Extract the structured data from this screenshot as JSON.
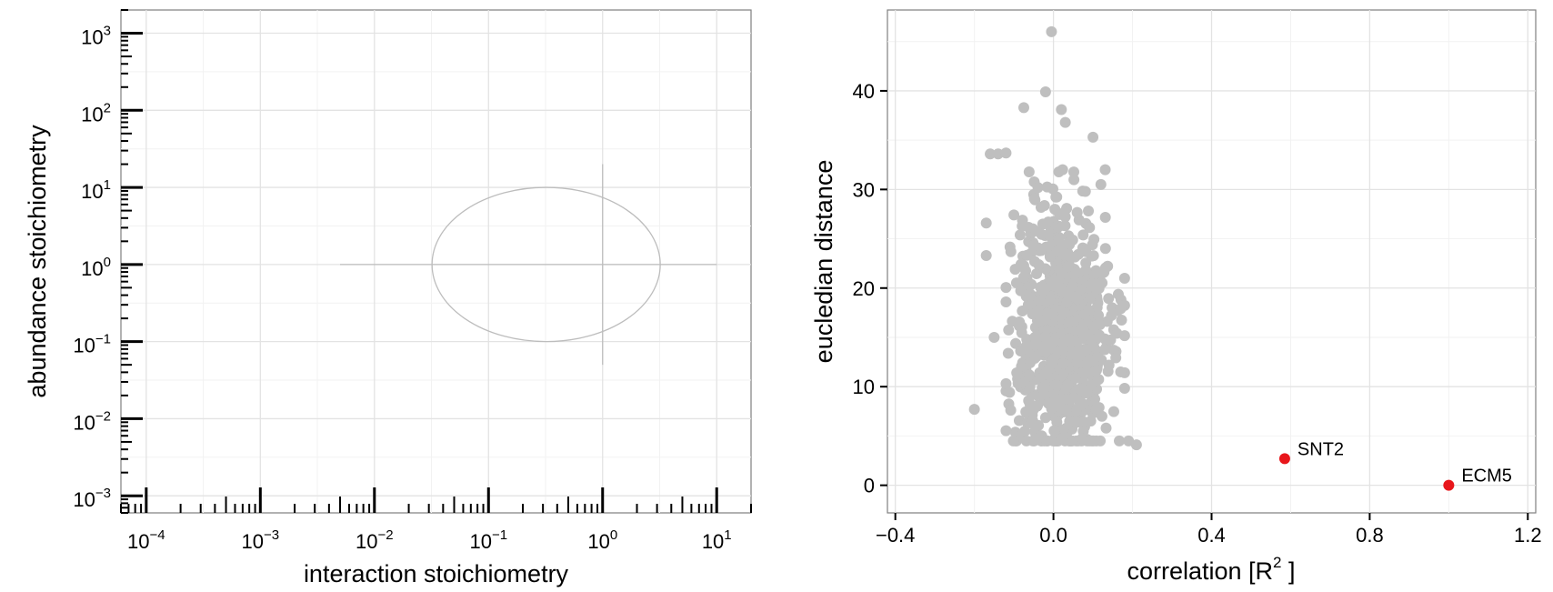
{
  "chart_data": [
    {
      "type": "scatter",
      "xlabel": "interaction stoichiometry",
      "ylabel": "abundance stoichiometry",
      "xscale": "log10",
      "yscale": "log10",
      "xlim": [
        6e-05,
        20
      ],
      "ylim": [
        0.0006,
        2000
      ],
      "x_ticks": [
        {
          "base": "10",
          "exp": "−4"
        },
        {
          "base": "10",
          "exp": "−3"
        },
        {
          "base": "10",
          "exp": "−2"
        },
        {
          "base": "10",
          "exp": "−1"
        },
        {
          "base": "10",
          "exp": "0"
        },
        {
          "base": "10",
          "exp": "1"
        }
      ],
      "y_ticks": [
        {
          "base": "10",
          "exp": "3"
        },
        {
          "base": "10",
          "exp": "2"
        },
        {
          "base": "10",
          "exp": "1"
        },
        {
          "base": "10",
          "exp": "0"
        },
        {
          "base": "10",
          "exp": "−1"
        },
        {
          "base": "10",
          "exp": "−2"
        },
        {
          "base": "10",
          "exp": "−3"
        }
      ],
      "grid": true,
      "rug": "x and y",
      "shapes": {
        "ellipse": {
          "center": [
            0.32,
            1
          ],
          "x_range": [
            0.032,
            3.2
          ],
          "y_range": [
            0.1,
            10
          ],
          "color": "#bdbdbd"
        },
        "horizontal_line": {
          "y": 1,
          "x_range": [
            0.005,
            10
          ],
          "color": "#bdbdbd"
        },
        "vertical_line": {
          "x": 1,
          "y_range": [
            0.05,
            20
          ],
          "color": "#bdbdbd"
        }
      }
    },
    {
      "type": "scatter",
      "xlabel": "correlation [R",
      "xlabel_sup": "2",
      "xlabel_end": " ]",
      "ylabel": "eucledian distance",
      "xlim": [
        -0.42,
        1.22
      ],
      "ylim": [
        -2.8,
        48.2
      ],
      "x_ticks": [
        "−0.4",
        "0.0",
        "0.4",
        "0.8",
        "1.2"
      ],
      "y_ticks": [
        "0",
        "10",
        "20",
        "30",
        "40"
      ],
      "grid": true,
      "point_color": "#bfbfbf",
      "highlight_color": "#e8161b",
      "bulk_points": {
        "count": 800,
        "x_center": 0.02,
        "x_spread": 0.06,
        "y_center": 15.5,
        "y_spread": 6.5,
        "x_range": [
          -0.2,
          0.22
        ],
        "y_range": [
          4,
          46
        ]
      },
      "outliers": [
        {
          "x": -0.005,
          "y": 46.0
        },
        {
          "x": -0.02,
          "y": 39.9
        },
        {
          "x": -0.075,
          "y": 38.3
        },
        {
          "x": 0.02,
          "y": 38.1
        },
        {
          "x": 0.03,
          "y": 36.8
        },
        {
          "x": 0.1,
          "y": 35.3
        },
        {
          "x": -0.16,
          "y": 33.6
        },
        {
          "x": -0.14,
          "y": 33.6
        },
        {
          "x": -0.12,
          "y": 33.7
        },
        {
          "x": 0.12,
          "y": 30.5
        },
        {
          "x": -0.2,
          "y": 7.7
        },
        {
          "x": -0.17,
          "y": 26.6
        },
        {
          "x": -0.17,
          "y": 23.3
        },
        {
          "x": -0.15,
          "y": 15.0
        },
        {
          "x": 0.21,
          "y": 4.1
        },
        {
          "x": 0.19,
          "y": 4.5
        },
        {
          "x": 0.17,
          "y": 17.9
        },
        {
          "x": 0.17,
          "y": 11.5
        }
      ],
      "highlighted": [
        {
          "label": "SNT2",
          "x": 0.585,
          "y": 2.7
        },
        {
          "label": "ECM5",
          "x": 1.0,
          "y": 0.0
        }
      ]
    }
  ]
}
